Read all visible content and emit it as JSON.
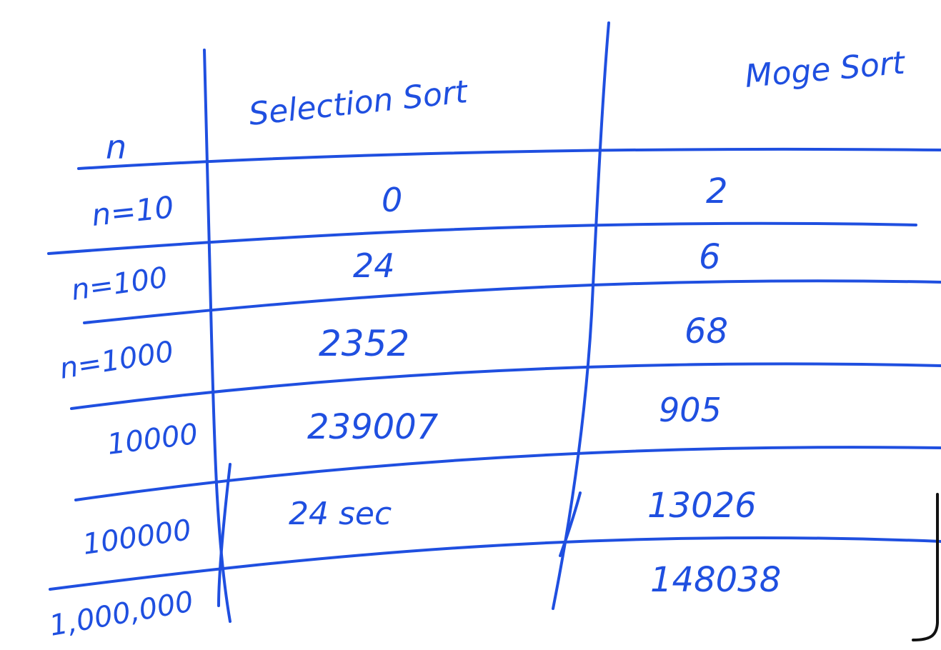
{
  "table": {
    "headers": {
      "n": "n",
      "selection": "Selection Sort",
      "merge": "Moge Sort"
    },
    "rows": [
      {
        "n": "n=10",
        "selection": "0",
        "merge": "2"
      },
      {
        "n": "n=100",
        "selection": "24",
        "merge": "6"
      },
      {
        "n": "n=1000",
        "selection": "2352",
        "merge": "68"
      },
      {
        "n": "10000",
        "selection": "239007",
        "merge": "905"
      },
      {
        "n": "100000",
        "selection": "24 sec",
        "merge": "13026"
      },
      {
        "n": "1,000,000",
        "selection": "",
        "merge": "148038"
      }
    ]
  },
  "colors": {
    "ink": "#1f4fe0",
    "background": "#ffffff"
  }
}
